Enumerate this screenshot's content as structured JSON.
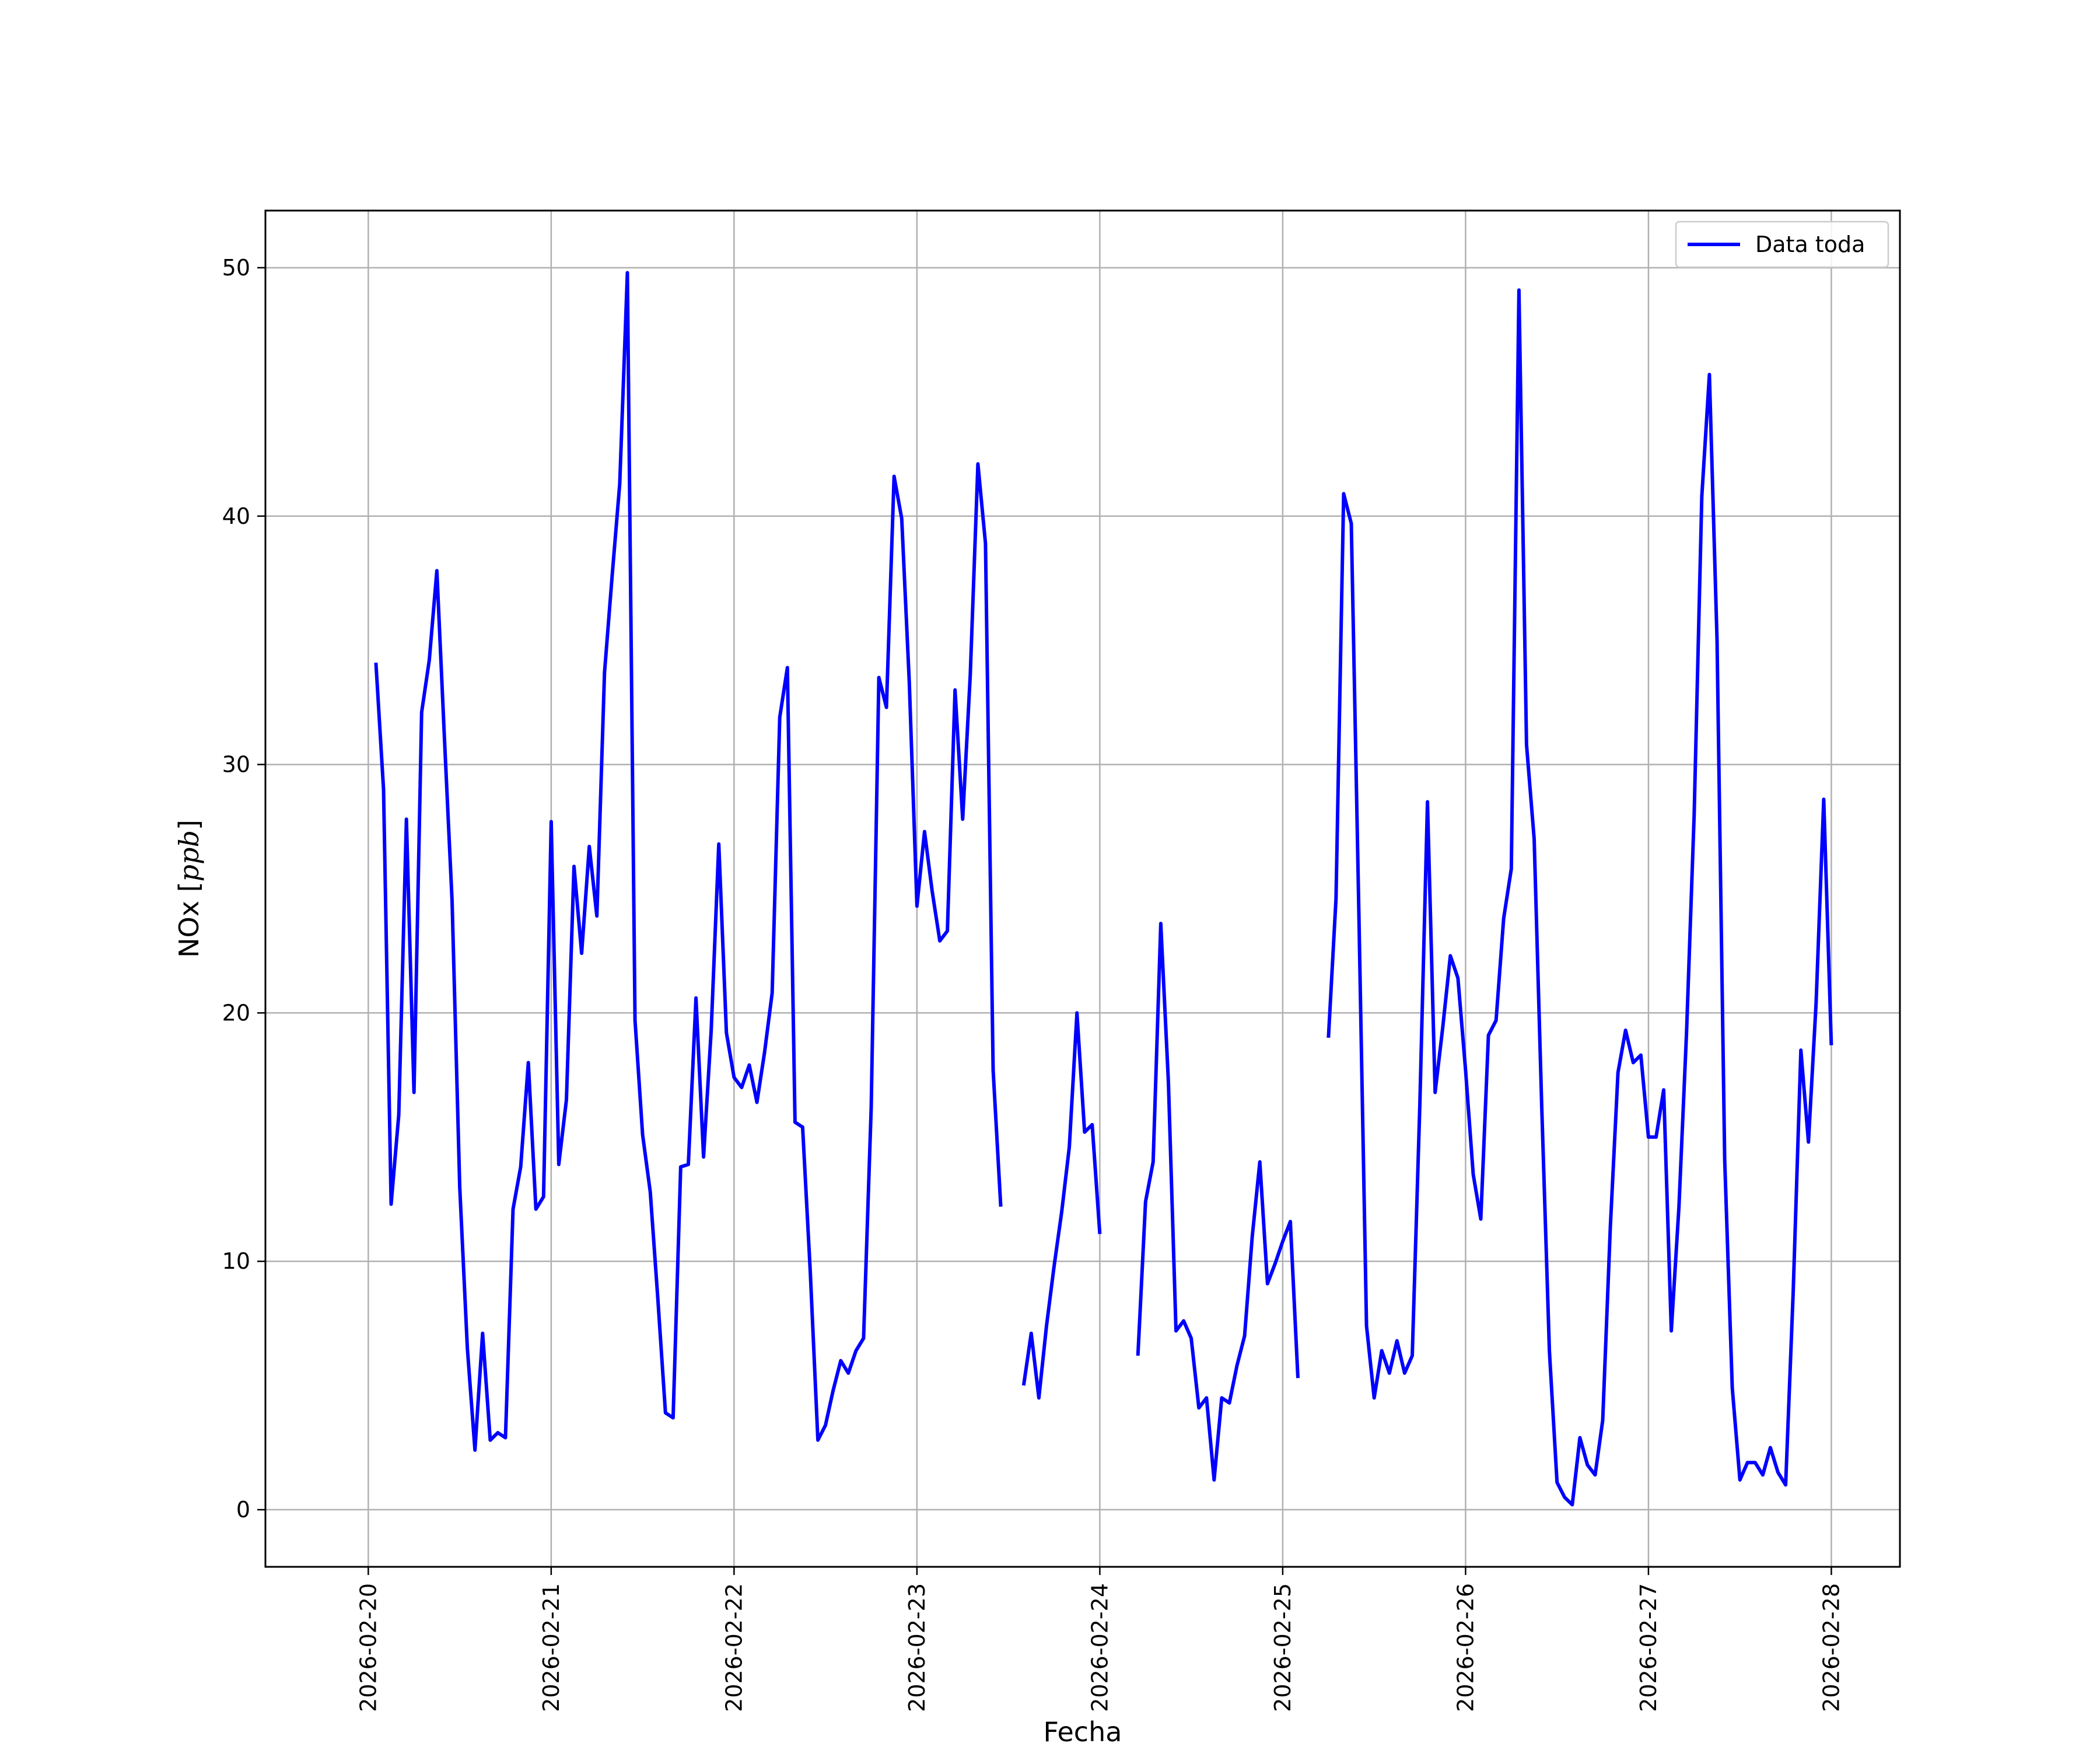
{
  "chart_data": {
    "type": "line",
    "title": "",
    "xlabel": "Fecha",
    "ylabel_prefix": "NOx [",
    "ylabel_unit": "ppb",
    "ylabel_suffix": "]",
    "xlim": [
      "2026-02-19T10:30",
      "2026-02-28T09:00"
    ],
    "ylim": [
      -2.3,
      52.3
    ],
    "grid": true,
    "legend_position": "top-right",
    "x_ticks": [
      "2026-02-20",
      "2026-02-21",
      "2026-02-22",
      "2026-02-23",
      "2026-02-24",
      "2026-02-25",
      "2026-02-26",
      "2026-02-27",
      "2026-02-28"
    ],
    "y_ticks": [
      0,
      10,
      20,
      30,
      40,
      50
    ],
    "series": [
      {
        "name": "Data toda",
        "color": "#0000ff",
        "segments": [
          [
            [
              "2026-02-20T01:00",
              34.1
            ],
            [
              "2026-02-20T02:00",
              29.0
            ],
            [
              "2026-02-20T03:00",
              12.3
            ],
            [
              "2026-02-20T04:00",
              15.9
            ],
            [
              "2026-02-20T05:00",
              27.8
            ],
            [
              "2026-02-20T06:00",
              16.8
            ],
            [
              "2026-02-20T07:00",
              32.1
            ],
            [
              "2026-02-20T08:00",
              34.2
            ],
            [
              "2026-02-20T09:00",
              37.8
            ],
            [
              "2026-02-20T10:00",
              31.0
            ],
            [
              "2026-02-20T11:00",
              24.5
            ],
            [
              "2026-02-20T12:00",
              13.0
            ],
            [
              "2026-02-20T13:00",
              6.5
            ],
            [
              "2026-02-20T14:00",
              2.4
            ],
            [
              "2026-02-20T15:00",
              7.1
            ],
            [
              "2026-02-20T16:00",
              2.8
            ],
            [
              "2026-02-20T17:00",
              3.1
            ],
            [
              "2026-02-20T18:00",
              2.9
            ],
            [
              "2026-02-20T19:00",
              12.1
            ],
            [
              "2026-02-20T20:00",
              13.8
            ],
            [
              "2026-02-20T21:00",
              18.0
            ],
            [
              "2026-02-20T22:00",
              12.1
            ],
            [
              "2026-02-20T23:00",
              12.6
            ],
            [
              "2026-02-21T00:00",
              27.7
            ],
            [
              "2026-02-21T01:00",
              13.9
            ],
            [
              "2026-02-21T02:00",
              16.5
            ],
            [
              "2026-02-21T03:00",
              25.9
            ],
            [
              "2026-02-21T04:00",
              22.4
            ],
            [
              "2026-02-21T05:00",
              26.7
            ],
            [
              "2026-02-21T06:00",
              23.9
            ],
            [
              "2026-02-21T07:00",
              33.7
            ],
            [
              "2026-02-21T08:00",
              37.6
            ],
            [
              "2026-02-21T09:00",
              41.3
            ],
            [
              "2026-02-21T10:00",
              49.8
            ],
            [
              "2026-02-21T11:00",
              19.7
            ],
            [
              "2026-02-21T12:00",
              15.1
            ],
            [
              "2026-02-21T13:00",
              12.8
            ],
            [
              "2026-02-21T14:00",
              8.5
            ],
            [
              "2026-02-21T15:00",
              3.9
            ],
            [
              "2026-02-21T16:00",
              3.7
            ],
            [
              "2026-02-21T17:00",
              13.8
            ],
            [
              "2026-02-21T18:00",
              13.9
            ],
            [
              "2026-02-21T19:00",
              20.6
            ],
            [
              "2026-02-21T20:00",
              14.2
            ],
            [
              "2026-02-21T21:00",
              19.3
            ],
            [
              "2026-02-21T22:00",
              26.8
            ],
            [
              "2026-02-21T23:00",
              19.2
            ],
            [
              "2026-02-22T00:00",
              17.4
            ],
            [
              "2026-02-22T01:00",
              17.0
            ],
            [
              "2026-02-22T02:00",
              17.9
            ],
            [
              "2026-02-22T03:00",
              16.4
            ],
            [
              "2026-02-22T04:00",
              18.4
            ],
            [
              "2026-02-22T05:00",
              20.8
            ],
            [
              "2026-02-22T06:00",
              31.9
            ],
            [
              "2026-02-22T07:00",
              33.9
            ],
            [
              "2026-02-22T08:00",
              15.6
            ],
            [
              "2026-02-22T09:00",
              15.4
            ],
            [
              "2026-02-22T10:00",
              9.6
            ],
            [
              "2026-02-22T11:00",
              2.8
            ],
            [
              "2026-02-22T12:00",
              3.4
            ],
            [
              "2026-02-22T13:00",
              4.8
            ],
            [
              "2026-02-22T14:00",
              6.0
            ],
            [
              "2026-02-22T15:00",
              5.5
            ],
            [
              "2026-02-22T16:00",
              6.4
            ],
            [
              "2026-02-22T17:00",
              6.9
            ],
            [
              "2026-02-22T18:00",
              16.2
            ],
            [
              "2026-02-22T19:00",
              33.5
            ],
            [
              "2026-02-22T20:00",
              32.3
            ],
            [
              "2026-02-22T21:00",
              41.6
            ],
            [
              "2026-02-22T22:00",
              39.9
            ],
            [
              "2026-02-22T23:00",
              33.3
            ],
            [
              "2026-02-23T00:00",
              24.3
            ],
            [
              "2026-02-23T01:00",
              27.3
            ],
            [
              "2026-02-23T02:00",
              24.9
            ],
            [
              "2026-02-23T03:00",
              22.9
            ],
            [
              "2026-02-23T04:00",
              23.3
            ],
            [
              "2026-02-23T05:00",
              33.0
            ],
            [
              "2026-02-23T06:00",
              27.8
            ],
            [
              "2026-02-23T07:00",
              33.6
            ],
            [
              "2026-02-23T08:00",
              42.1
            ],
            [
              "2026-02-23T09:00",
              38.9
            ],
            [
              "2026-02-23T10:00",
              17.7
            ],
            [
              "2026-02-23T11:00",
              12.2
            ]
          ],
          [
            [
              "2026-02-23T14:00",
              5.0
            ],
            [
              "2026-02-23T15:00",
              7.1
            ],
            [
              "2026-02-23T16:00",
              4.5
            ],
            [
              "2026-02-23T17:00",
              7.4
            ],
            [
              "2026-02-23T18:00",
              9.8
            ],
            [
              "2026-02-23T19:00",
              12.0
            ],
            [
              "2026-02-23T20:00",
              14.6
            ],
            [
              "2026-02-23T21:00",
              20.0
            ],
            [
              "2026-02-23T22:00",
              15.2
            ],
            [
              "2026-02-23T23:00",
              15.5
            ],
            [
              "2026-02-24T00:00",
              11.1
            ]
          ],
          [
            [
              "2026-02-24T05:00",
              6.2
            ],
            [
              "2026-02-24T06:00",
              12.4
            ],
            [
              "2026-02-24T07:00",
              14.0
            ],
            [
              "2026-02-24T08:00",
              23.6
            ],
            [
              "2026-02-24T09:00",
              17.2
            ],
            [
              "2026-02-24T10:00",
              7.2
            ],
            [
              "2026-02-24T11:00",
              7.6
            ],
            [
              "2026-02-24T12:00",
              6.9
            ],
            [
              "2026-02-24T13:00",
              4.1
            ],
            [
              "2026-02-24T14:00",
              4.5
            ],
            [
              "2026-02-24T15:00",
              1.2
            ],
            [
              "2026-02-24T16:00",
              4.5
            ],
            [
              "2026-02-24T17:00",
              4.3
            ],
            [
              "2026-02-24T18:00",
              5.8
            ],
            [
              "2026-02-24T19:00",
              7.0
            ],
            [
              "2026-02-24T20:00",
              11.0
            ],
            [
              "2026-02-24T21:00",
              14.0
            ],
            [
              "2026-02-24T22:00",
              9.1
            ],
            [
              "2026-02-24T23:00",
              9.9
            ],
            [
              "2026-02-25T00:00",
              10.8
            ],
            [
              "2026-02-25T01:00",
              11.6
            ],
            [
              "2026-02-25T02:00",
              5.3
            ]
          ],
          [
            [
              "2026-02-25T06:00",
              19.0
            ],
            [
              "2026-02-25T07:00",
              24.6
            ],
            [
              "2026-02-25T08:00",
              40.9
            ],
            [
              "2026-02-25T09:00",
              39.7
            ],
            [
              "2026-02-25T10:00",
              24.0
            ],
            [
              "2026-02-25T11:00",
              7.4
            ],
            [
              "2026-02-25T12:00",
              4.5
            ],
            [
              "2026-02-25T13:00",
              6.4
            ],
            [
              "2026-02-25T14:00",
              5.5
            ],
            [
              "2026-02-25T15:00",
              6.8
            ],
            [
              "2026-02-25T16:00",
              5.5
            ],
            [
              "2026-02-25T17:00",
              6.2
            ],
            [
              "2026-02-25T18:00",
              16.3
            ],
            [
              "2026-02-25T19:00",
              28.5
            ],
            [
              "2026-02-25T20:00",
              16.8
            ],
            [
              "2026-02-25T21:00",
              19.4
            ],
            [
              "2026-02-25T22:00",
              22.3
            ],
            [
              "2026-02-25T23:00",
              21.4
            ],
            [
              "2026-02-26T00:00",
              17.7
            ],
            [
              "2026-02-26T01:00",
              13.5
            ],
            [
              "2026-02-26T02:00",
              11.7
            ],
            [
              "2026-02-26T03:00",
              19.1
            ],
            [
              "2026-02-26T04:00",
              19.7
            ],
            [
              "2026-02-26T05:00",
              23.8
            ],
            [
              "2026-02-26T06:00",
              25.8
            ],
            [
              "2026-02-26T07:00",
              49.1
            ],
            [
              "2026-02-26T08:00",
              30.8
            ],
            [
              "2026-02-26T09:00",
              27.0
            ],
            [
              "2026-02-26T10:00",
              16.2
            ],
            [
              "2026-02-26T11:00",
              6.4
            ],
            [
              "2026-02-26T12:00",
              1.1
            ],
            [
              "2026-02-26T13:00",
              0.5
            ],
            [
              "2026-02-26T14:00",
              0.2
            ],
            [
              "2026-02-26T15:00",
              2.9
            ],
            [
              "2026-02-26T16:00",
              1.8
            ],
            [
              "2026-02-26T17:00",
              1.4
            ],
            [
              "2026-02-26T18:00",
              3.6
            ],
            [
              "2026-02-26T19:00",
              11.4
            ],
            [
              "2026-02-26T20:00",
              17.6
            ],
            [
              "2026-02-26T21:00",
              19.3
            ],
            [
              "2026-02-26T22:00",
              18.0
            ],
            [
              "2026-02-26T23:00",
              18.3
            ],
            [
              "2026-02-27T00:00",
              15.0
            ],
            [
              "2026-02-27T01:00",
              15.0
            ],
            [
              "2026-02-27T02:00",
              16.9
            ],
            [
              "2026-02-27T03:00",
              7.2
            ],
            [
              "2026-02-27T04:00",
              12.2
            ],
            [
              "2026-02-27T05:00",
              19.2
            ],
            [
              "2026-02-27T06:00",
              28.0
            ],
            [
              "2026-02-27T07:00",
              40.8
            ],
            [
              "2026-02-27T08:00",
              45.7
            ],
            [
              "2026-02-27T09:00",
              35.0
            ],
            [
              "2026-02-27T10:00",
              14.1
            ],
            [
              "2026-02-27T11:00",
              4.9
            ],
            [
              "2026-02-27T12:00",
              1.2
            ],
            [
              "2026-02-27T13:00",
              1.9
            ],
            [
              "2026-02-27T14:00",
              1.9
            ],
            [
              "2026-02-27T15:00",
              1.4
            ],
            [
              "2026-02-27T16:00",
              2.5
            ],
            [
              "2026-02-27T17:00",
              1.5
            ],
            [
              "2026-02-27T18:00",
              1.0
            ],
            [
              "2026-02-27T19:00",
              8.8
            ],
            [
              "2026-02-27T20:00",
              18.5
            ],
            [
              "2026-02-27T21:00",
              14.8
            ],
            [
              "2026-02-27T22:00",
              20.4
            ],
            [
              "2026-02-27T23:00",
              28.6
            ],
            [
              "2026-02-28T00:00",
              18.7
            ]
          ]
        ]
      }
    ]
  }
}
